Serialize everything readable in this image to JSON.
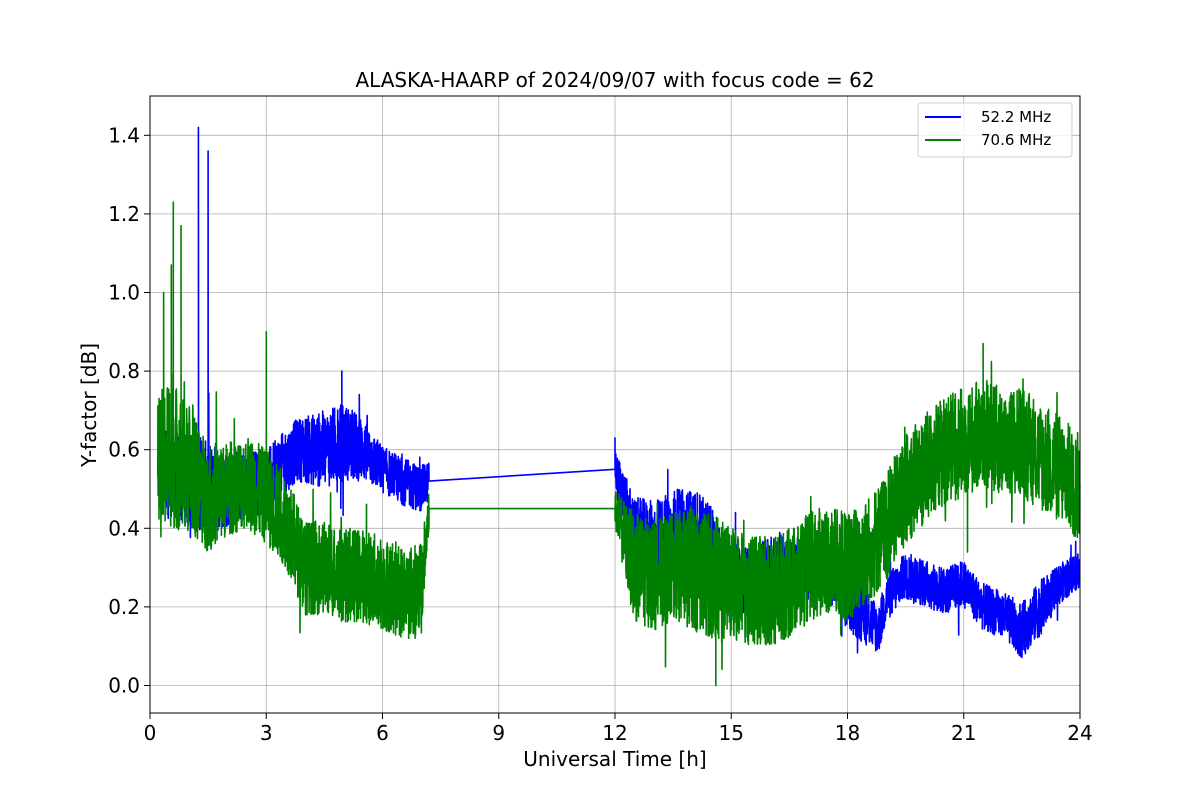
{
  "chart_data": {
    "type": "line",
    "title": "ALASKA-HAARP of 2024/09/07 with focus code = 62",
    "xlabel": "Universal Time [h]",
    "ylabel": "Y-factor [dB]",
    "xlim": [
      0,
      24
    ],
    "ylim": [
      -0.07,
      1.5
    ],
    "xticks": [
      0,
      3,
      6,
      9,
      12,
      15,
      18,
      21,
      24
    ],
    "yticks": [
      0.0,
      0.2,
      0.4,
      0.6,
      0.8,
      1.0,
      1.2,
      1.4
    ],
    "xtick_labels": [
      "0",
      "3",
      "6",
      "9",
      "12",
      "15",
      "18",
      "21",
      "24"
    ],
    "ytick_labels": [
      "0.0",
      "0.2",
      "0.4",
      "0.6",
      "0.8",
      "1.0",
      "1.2",
      "1.4"
    ],
    "grid": true,
    "legend_position": "top-right",
    "data_gap": [
      7.2,
      12.0
    ],
    "series": [
      {
        "name": "52.2 MHz",
        "color": "#0000ff",
        "x": [
          0.2,
          1.0,
          2.0,
          3.0,
          3.8,
          4.5,
          5.0,
          5.5,
          6.0,
          6.5,
          7.0,
          7.2,
          12.0,
          12.5,
          13.0,
          13.5,
          14.0,
          14.5,
          15.0,
          15.5,
          16.0,
          16.5,
          17.0,
          17.5,
          18.0,
          18.5,
          18.8,
          19.0,
          19.5,
          20.0,
          20.5,
          21.0,
          21.5,
          22.0,
          22.5,
          23.0,
          23.5,
          24.0
        ],
        "y": [
          0.55,
          0.52,
          0.5,
          0.52,
          0.6,
          0.6,
          0.62,
          0.6,
          0.55,
          0.52,
          0.5,
          0.52,
          0.55,
          0.38,
          0.35,
          0.38,
          0.38,
          0.36,
          0.26,
          0.28,
          0.3,
          0.3,
          0.3,
          0.3,
          0.22,
          0.18,
          0.14,
          0.22,
          0.28,
          0.26,
          0.24,
          0.26,
          0.2,
          0.18,
          0.14,
          0.2,
          0.26,
          0.3
        ],
        "amplitude": [
          0.1,
          0.12,
          0.1,
          0.08,
          0.08,
          0.1,
          0.1,
          0.08,
          0.06,
          0.06,
          0.06,
          0.05,
          0.05,
          0.1,
          0.12,
          0.12,
          0.12,
          0.1,
          0.1,
          0.08,
          0.08,
          0.08,
          0.08,
          0.08,
          0.08,
          0.08,
          0.06,
          0.06,
          0.06,
          0.06,
          0.06,
          0.06,
          0.06,
          0.06,
          0.07,
          0.07,
          0.05,
          0.05
        ],
        "spikes": [
          [
            1.25,
            1.42
          ],
          [
            1.5,
            1.36
          ],
          [
            4.95,
            0.8
          ],
          [
            12.0,
            0.63
          ]
        ]
      },
      {
        "name": "70.6 MHz",
        "color": "#008000",
        "x": [
          0.2,
          0.5,
          1.0,
          1.5,
          2.0,
          2.5,
          3.0,
          3.5,
          4.0,
          4.5,
          5.0,
          5.5,
          6.0,
          6.5,
          7.0,
          7.2,
          12.0,
          12.5,
          13.0,
          13.5,
          14.0,
          14.5,
          15.0,
          15.5,
          16.0,
          16.5,
          17.0,
          17.5,
          18.0,
          18.5,
          19.0,
          19.5,
          20.0,
          20.5,
          21.0,
          21.5,
          22.0,
          22.5,
          23.0,
          23.5,
          24.0
        ],
        "y": [
          0.55,
          0.6,
          0.55,
          0.48,
          0.5,
          0.52,
          0.48,
          0.42,
          0.3,
          0.3,
          0.28,
          0.28,
          0.26,
          0.24,
          0.24,
          0.45,
          0.45,
          0.3,
          0.28,
          0.3,
          0.3,
          0.28,
          0.26,
          0.24,
          0.24,
          0.26,
          0.3,
          0.32,
          0.3,
          0.34,
          0.4,
          0.5,
          0.55,
          0.6,
          0.62,
          0.64,
          0.62,
          0.62,
          0.58,
          0.55,
          0.5
        ],
        "amplitude": [
          0.18,
          0.2,
          0.16,
          0.14,
          0.12,
          0.12,
          0.12,
          0.12,
          0.12,
          0.12,
          0.12,
          0.12,
          0.12,
          0.12,
          0.12,
          0.05,
          0.05,
          0.14,
          0.14,
          0.14,
          0.16,
          0.16,
          0.14,
          0.14,
          0.14,
          0.14,
          0.14,
          0.14,
          0.14,
          0.14,
          0.14,
          0.14,
          0.14,
          0.14,
          0.14,
          0.14,
          0.14,
          0.14,
          0.14,
          0.14,
          0.14
        ],
        "spikes": [
          [
            0.6,
            1.23
          ],
          [
            0.8,
            1.17
          ],
          [
            0.55,
            1.07
          ],
          [
            0.35,
            1.0
          ],
          [
            3.0,
            0.9
          ],
          [
            14.6,
            0.0
          ],
          [
            21.5,
            0.87
          ]
        ]
      }
    ]
  }
}
